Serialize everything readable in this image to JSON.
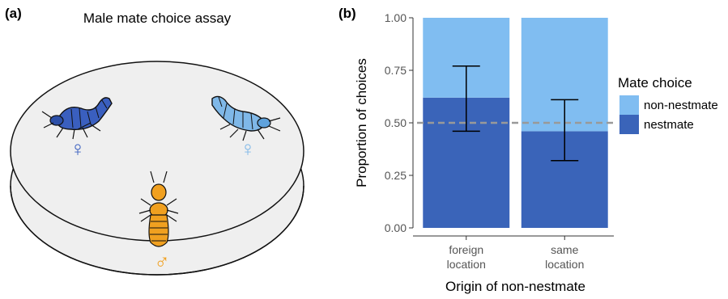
{
  "panel_a": {
    "label": "(a)",
    "title": "Male mate choice assay",
    "female_symbol": "♀",
    "male_symbol": "♂",
    "colors": {
      "female_nestmate": "#3a5fbf",
      "female_nonnestmate": "#7fb8e8",
      "male": "#f0a020",
      "dish_fill": "#efefef"
    },
    "icons": [
      "termite-female-nestmate-icon",
      "termite-female-nonnestmate-icon",
      "termite-male-icon"
    ]
  },
  "panel_b": {
    "label": "(b)"
  },
  "chart_data": {
    "type": "bar",
    "stacked": true,
    "categories": [
      "foreign location",
      "same location"
    ],
    "category_lines": [
      [
        "foreign",
        "location"
      ],
      [
        "same",
        "location"
      ]
    ],
    "series": [
      {
        "name": "nestmate",
        "values": [
          0.62,
          0.46
        ],
        "color": "#3a64b9"
      },
      {
        "name": "non-nestmate",
        "values": [
          0.38,
          0.54
        ],
        "color": "#80bdf1"
      }
    ],
    "error_bars": [
      {
        "category": "foreign location",
        "center": 0.62,
        "low": 0.46,
        "high": 0.77
      },
      {
        "category": "same location",
        "center": 0.46,
        "low": 0.32,
        "high": 0.61
      }
    ],
    "reference_line": {
      "y": 0.5,
      "style": "dashed",
      "color": "#999999"
    },
    "xlabel": "Origin of non-nestmate",
    "ylabel": "Proportion of choices",
    "ylim": [
      0,
      1
    ],
    "yticks": [
      "0.00",
      "0.25",
      "0.50",
      "0.75",
      "1.00"
    ],
    "ytick_values": [
      0,
      0.25,
      0.5,
      0.75,
      1
    ],
    "legend_title": "Mate choice",
    "legend_placement": "right",
    "grid": false
  }
}
